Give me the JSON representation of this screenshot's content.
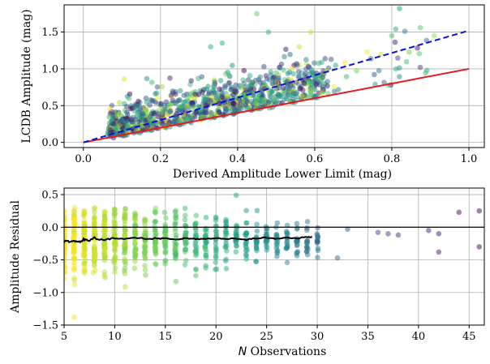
{
  "chart_data": [
    {
      "type": "scatter",
      "xlabel": "Derived Amplitude Lower Limit (mag)",
      "ylabel": "LCDB Amplitude (mag)",
      "xlim": [
        -0.05,
        1.04
      ],
      "ylim": [
        -0.07,
        1.87
      ],
      "xticks": [
        0.0,
        0.2,
        0.4,
        0.6,
        0.8,
        1.0
      ],
      "xtick_labels": [
        "0.0",
        "0.2",
        "0.4",
        "0.6",
        "0.8",
        "1.0"
      ],
      "yticks": [
        0.0,
        0.5,
        1.0,
        1.5
      ],
      "ytick_labels": [
        "0.0",
        "0.5",
        "1.0",
        "1.5"
      ],
      "grid": true,
      "colormap": "viridis (color = number of observations)",
      "reference_lines": [
        {
          "style": "solid",
          "color": "#e8191b",
          "x": [
            0.0,
            1.0
          ],
          "y": [
            0.0,
            1.0
          ]
        },
        {
          "style": "dashed",
          "color": "#0a10d8",
          "x": [
            0.0,
            1.0
          ],
          "y": [
            0.0,
            1.52
          ]
        }
      ],
      "scatter_description": "~1000 points, concentrated x 0.05–0.65, y 0.1–1.2; mostly above the y=x line",
      "notable_points": [
        {
          "x": 0.82,
          "y": 1.82
        },
        {
          "x": 0.45,
          "y": 1.75
        },
        {
          "x": 0.48,
          "y": 1.5
        },
        {
          "x": 0.8,
          "y": 1.45
        },
        {
          "x": 0.91,
          "y": 1.45
        },
        {
          "x": 0.36,
          "y": 1.35
        },
        {
          "x": 0.33,
          "y": 1.3
        },
        {
          "x": 0.56,
          "y": 1.3
        },
        {
          "x": 0.59,
          "y": 1.5
        }
      ]
    },
    {
      "type": "scatter",
      "xlabel": "N Observations",
      "xlabel_italic": "N",
      "xlabel_rest": " Observations",
      "ylabel": "Amplitude Residual",
      "xlim": [
        5,
        46.5
      ],
      "ylim": [
        -1.5,
        0.6
      ],
      "xticks": [
        5,
        10,
        15,
        20,
        25,
        30,
        35,
        40,
        45
      ],
      "xtick_labels": [
        "5",
        "10",
        "15",
        "20",
        "25",
        "30",
        "35",
        "40",
        "45"
      ],
      "yticks": [
        -1.5,
        -1.0,
        -0.5,
        0.0,
        0.5
      ],
      "ytick_labels": [
        "−1.5",
        "−1.0",
        "−0.5",
        "0.0",
        "0.5"
      ],
      "grid": true,
      "colormap": "viridis (color = number of observations)",
      "reference_lines": [
        {
          "style": "solid",
          "color": "#000000",
          "y": 0.0
        }
      ],
      "running_mean": {
        "color": "#000000",
        "x": [
          5.0,
          5.5,
          6.0,
          6.5,
          7.0,
          7.5,
          8.0,
          9.0,
          10.0,
          11.0,
          12.0,
          13.0,
          14.0,
          15.0,
          16.0,
          17.0,
          18.0,
          19.0,
          20.0,
          21.0,
          22.0,
          23.0,
          24.0,
          25.0,
          26.0,
          27.0,
          28.0,
          29.0,
          29.5
        ],
        "y": [
          -0.2,
          -0.22,
          -0.21,
          -0.23,
          -0.19,
          -0.2,
          -0.16,
          -0.2,
          -0.17,
          -0.18,
          -0.16,
          -0.18,
          -0.17,
          -0.17,
          -0.19,
          -0.17,
          -0.18,
          -0.18,
          -0.17,
          -0.18,
          -0.17,
          -0.19,
          -0.17,
          -0.16,
          -0.18,
          -0.16,
          -0.17,
          -0.15,
          -0.15
        ]
      },
      "scatter_description": "points in vertical columns at integer N from 5 to 30 (yellow at low N to teal), sparse purple points beyond 30",
      "notable_points": [
        {
          "x": 6,
          "y": -1.38
        },
        {
          "x": 22,
          "y": 0.49
        },
        {
          "x": 44,
          "y": 0.23
        },
        {
          "x": 46,
          "y": 0.25
        },
        {
          "x": 46,
          "y": -0.3
        },
        {
          "x": 41,
          "y": -0.05
        },
        {
          "x": 42,
          "y": -0.38
        },
        {
          "x": 42,
          "y": -0.1
        },
        {
          "x": 32,
          "y": -0.47
        },
        {
          "x": 33,
          "y": -0.03
        },
        {
          "x": 38,
          "y": -0.12
        },
        {
          "x": 36,
          "y": -0.08
        },
        {
          "x": 37,
          "y": -0.1
        }
      ]
    }
  ]
}
